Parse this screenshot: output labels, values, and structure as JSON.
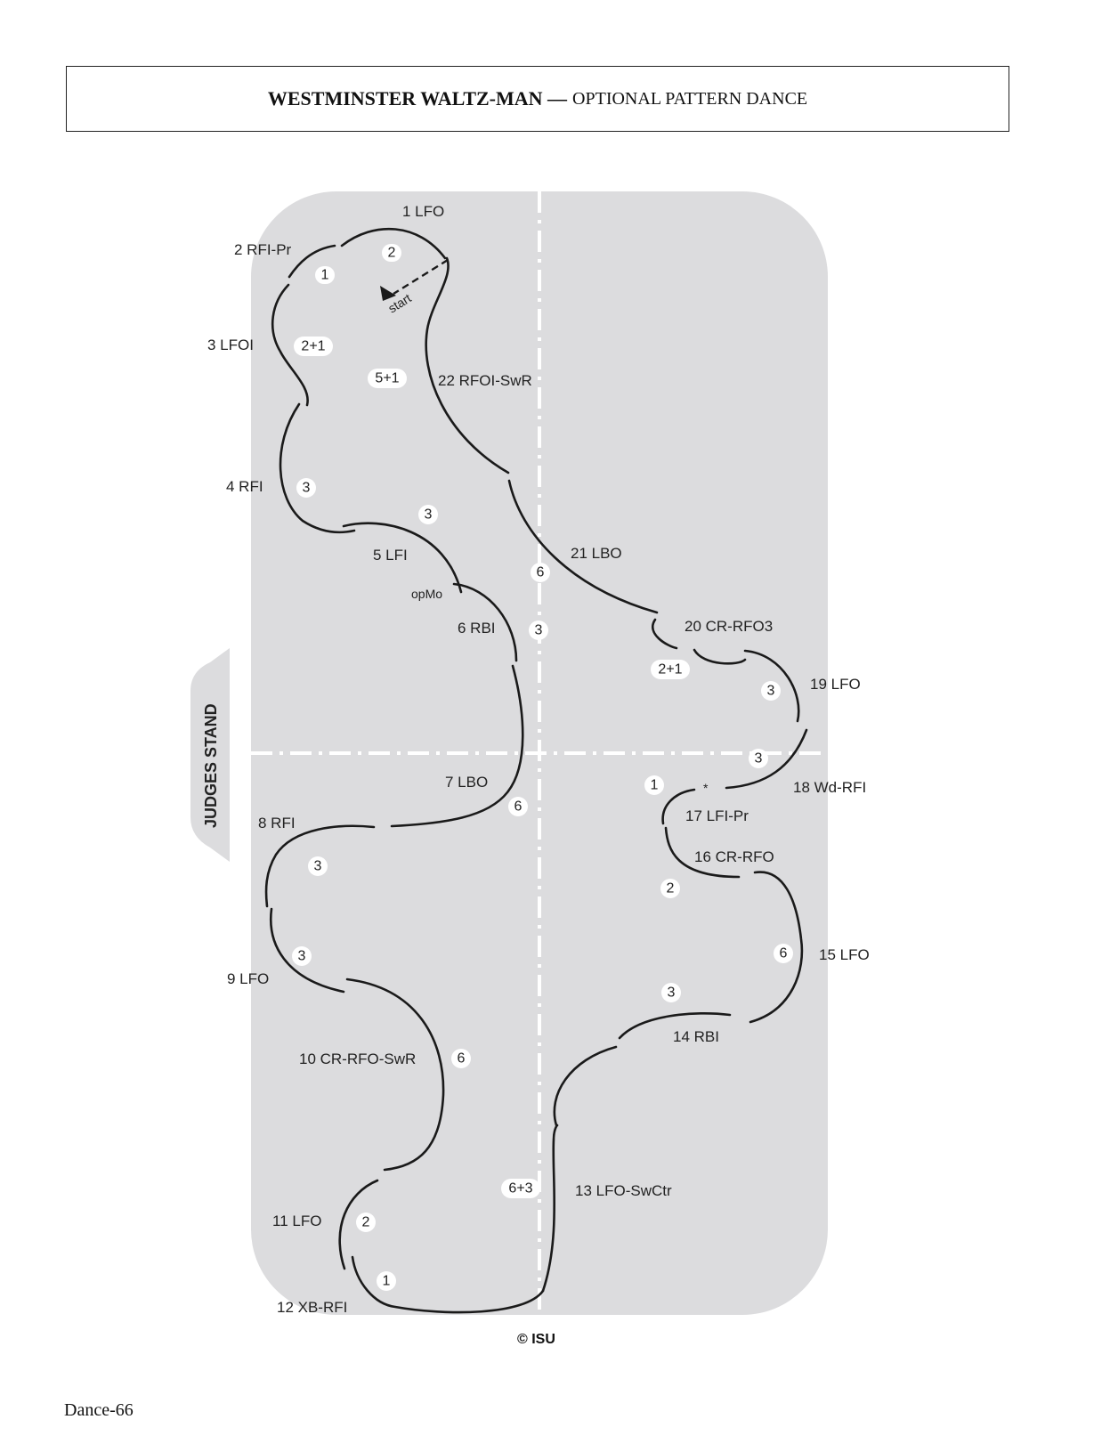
{
  "header": {
    "title": "WESTMINSTER WALTZ-MAN —",
    "subtitle": "OPTIONAL PATTERN DANCE"
  },
  "diagram": {
    "side_label": "JUDGES STAND",
    "start_label": "start",
    "copyright": "© ISU",
    "steps": [
      {
        "id": "s1",
        "label": "1 LFO"
      },
      {
        "id": "s2",
        "label": "2 RFI-Pr"
      },
      {
        "id": "s3",
        "label": "3 LFOI"
      },
      {
        "id": "s4",
        "label": "4 RFI"
      },
      {
        "id": "s5",
        "label": "5 LFI"
      },
      {
        "id": "s5b",
        "label": "opMo"
      },
      {
        "id": "s6",
        "label": "6 RBI"
      },
      {
        "id": "s7",
        "label": "7 LBO"
      },
      {
        "id": "s8",
        "label": "8 RFI"
      },
      {
        "id": "s9",
        "label": "9 LFO"
      },
      {
        "id": "s10",
        "label": "10 CR-RFO-SwR"
      },
      {
        "id": "s11",
        "label": "11 LFO"
      },
      {
        "id": "s12",
        "label": "12 XB-RFI"
      },
      {
        "id": "s13",
        "label": "13 LFO-SwCtr"
      },
      {
        "id": "s14",
        "label": "14 RBI"
      },
      {
        "id": "s15",
        "label": "15 LFO"
      },
      {
        "id": "s16",
        "label": "16 CR-RFO"
      },
      {
        "id": "s17",
        "label": "17 LFI-Pr"
      },
      {
        "id": "s18",
        "label": "18 Wd-RFI"
      },
      {
        "id": "s19",
        "label": "19 LFO"
      },
      {
        "id": "s20",
        "label": "20 CR-RFO3"
      },
      {
        "id": "s21",
        "label": "21 LBO"
      },
      {
        "id": "s22",
        "label": "22 RFOI-SwR"
      }
    ],
    "beats": [
      "2",
      "1",
      "2+1",
      "5+1",
      "3",
      "3",
      "6",
      "3",
      "6",
      "3",
      "3",
      "6",
      "2",
      "1",
      "6+3",
      "3",
      "6",
      "2",
      "1",
      "3",
      "3",
      "2+1"
    ],
    "asterisk": "*"
  },
  "footer": {
    "page_label": "Dance-66"
  }
}
